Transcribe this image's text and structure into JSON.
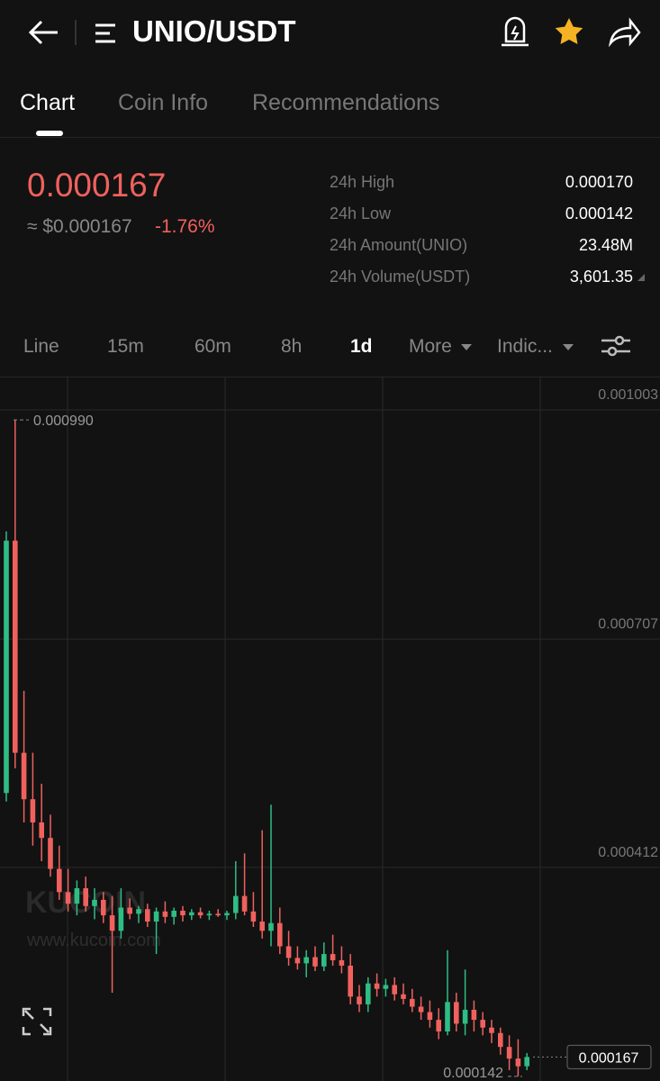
{
  "header": {
    "title": "UNIO/USDT"
  },
  "tabs": [
    "Chart",
    "Coin Info",
    "Recommendations"
  ],
  "price": {
    "last": "0.000167",
    "usd": "≈ $0.000167",
    "change": "-1.76%"
  },
  "stats": [
    [
      "24h High",
      "0.000170"
    ],
    [
      "24h Low",
      "0.000142"
    ],
    [
      "24h Amount(UNIO)",
      "23.48M"
    ],
    [
      "24h Volume(USDT)",
      "3,601.35"
    ]
  ],
  "intervals": [
    "Line",
    "15m",
    "60m",
    "8h",
    "1d",
    "More",
    "Indic..."
  ],
  "watermark": {
    "logo": "KUCOIN",
    "url": "www.kucoin.com"
  },
  "chart": {
    "type": "candlestick",
    "up_color": "#2ebd85",
    "down_color": "#f0615e",
    "ylim": [
      0.000136,
      0.001046
    ],
    "yticks": [
      0.001003,
      0.000707,
      0.000412
    ],
    "max_label": {
      "value": 0.00099,
      "label": "0.000990"
    },
    "min_label": 0.000142,
    "current_price": 0.000167,
    "ohlc": [
      [
        0.000508,
        0.000846,
        0.000497,
        0.000834
      ],
      [
        0.000834,
        0.00099,
        0.00054,
        0.00056
      ],
      [
        0.00056,
        0.00064,
        0.00047,
        0.0005
      ],
      [
        0.0005,
        0.00056,
        0.00044,
        0.00047
      ],
      [
        0.00047,
        0.00052,
        0.00042,
        0.00045
      ],
      [
        0.00045,
        0.00048,
        0.0004,
        0.00041
      ],
      [
        0.00041,
        0.00044,
        0.00037,
        0.00038
      ],
      [
        0.00038,
        0.00041,
        0.000355,
        0.000365
      ],
      [
        0.000365,
        0.000395,
        0.00035,
        0.000385
      ],
      [
        0.000385,
        0.0004,
        0.000355,
        0.000362
      ],
      [
        0.000362,
        0.000385,
        0.000345,
        0.00037
      ],
      [
        0.00037,
        0.00038,
        0.00034,
        0.00035
      ],
      [
        0.00035,
        0.000375,
        0.00025,
        0.00033
      ],
      [
        0.00033,
        0.000385,
        0.00032,
        0.00036
      ],
      [
        0.00036,
        0.000372,
        0.000345,
        0.000352
      ],
      [
        0.000352,
        0.000362,
        0.00034,
        0.000358
      ],
      [
        0.000358,
        0.000365,
        0.000335,
        0.000342
      ],
      [
        0.000342,
        0.00036,
        0.0003,
        0.000355
      ],
      [
        0.000355,
        0.000368,
        0.00034,
        0.000348
      ],
      [
        0.000348,
        0.00036,
        0.000338,
        0.000356
      ],
      [
        0.000356,
        0.000362,
        0.000342,
        0.00035
      ],
      [
        0.00035,
        0.000358,
        0.000344,
        0.000354
      ],
      [
        0.000354,
        0.00036,
        0.000346,
        0.00035
      ],
      [
        0.00035,
        0.000356,
        0.000344,
        0.000352
      ],
      [
        0.000352,
        0.000358,
        0.000348,
        0.00035
      ],
      [
        0.00035,
        0.000356,
        0.000344,
        0.000353
      ],
      [
        0.000353,
        0.00042,
        0.000345,
        0.000375
      ],
      [
        0.000375,
        0.00043,
        0.00035,
        0.000355
      ],
      [
        0.000355,
        0.00038,
        0.000335,
        0.000342
      ],
      [
        0.000342,
        0.00046,
        0.00032,
        0.00033
      ],
      [
        0.00033,
        0.000493,
        0.00031,
        0.00034
      ],
      [
        0.00034,
        0.00036,
        0.0003,
        0.00031
      ],
      [
        0.00031,
        0.00033,
        0.000285,
        0.000295
      ],
      [
        0.000295,
        0.00031,
        0.00028,
        0.000288
      ],
      [
        0.000288,
        0.000305,
        0.00027,
        0.000296
      ],
      [
        0.000296,
        0.00031,
        0.000278,
        0.000284
      ],
      [
        0.000284,
        0.000315,
        0.000278,
        0.0003
      ],
      [
        0.0003,
        0.000325,
        0.000285,
        0.000292
      ],
      [
        0.000292,
        0.00031,
        0.000275,
        0.000285
      ],
      [
        0.000285,
        0.0003,
        0.000235,
        0.000245
      ],
      [
        0.000245,
        0.00026,
        0.000225,
        0.000235
      ],
      [
        0.000235,
        0.00027,
        0.000225,
        0.000262
      ],
      [
        0.000262,
        0.000275,
        0.000245,
        0.000255
      ],
      [
        0.000255,
        0.000268,
        0.000245,
        0.00026
      ],
      [
        0.00026,
        0.00027,
        0.00024,
        0.000248
      ],
      [
        0.000248,
        0.000262,
        0.000235,
        0.000242
      ],
      [
        0.000242,
        0.000255,
        0.000225,
        0.000232
      ],
      [
        0.000232,
        0.000245,
        0.000215,
        0.000225
      ],
      [
        0.000225,
        0.00024,
        0.000205,
        0.000215
      ],
      [
        0.000215,
        0.00023,
        0.00019,
        0.0002
      ],
      [
        0.0002,
        0.000305,
        0.000195,
        0.000238
      ],
      [
        0.000238,
        0.00025,
        0.0002,
        0.00021
      ],
      [
        0.00021,
        0.00028,
        0.000195,
        0.000228
      ],
      [
        0.000228,
        0.00024,
        0.0002,
        0.000215
      ],
      [
        0.000215,
        0.000225,
        0.000195,
        0.000205
      ],
      [
        0.000205,
        0.000215,
        0.000185,
        0.000198
      ],
      [
        0.000198,
        0.000205,
        0.00017,
        0.00018
      ],
      [
        0.00018,
        0.000195,
        0.00015,
        0.000165
      ],
      [
        0.000165,
        0.00019,
        0.000142,
        0.000155
      ],
      [
        0.000155,
        0.000172,
        0.00015,
        0.000167
      ]
    ]
  }
}
